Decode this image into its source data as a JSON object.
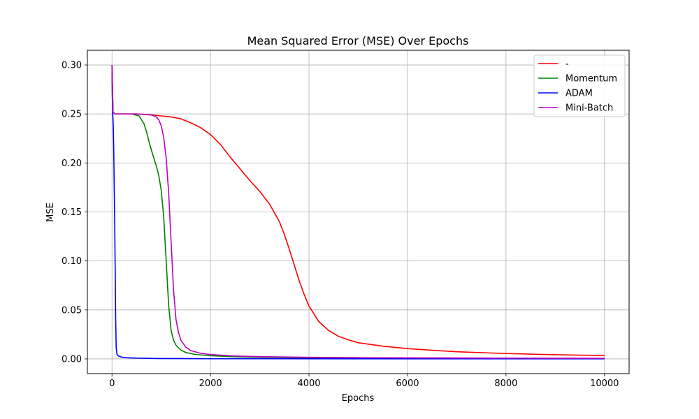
{
  "chart_data": {
    "type": "line",
    "title": "Mean Squared Error (MSE) Over Epochs",
    "xlabel": "Epochs",
    "ylabel": "MSE",
    "xlim": [
      -500,
      10500
    ],
    "ylim": [
      -0.015,
      0.315
    ],
    "x_ticks": [
      0,
      2000,
      4000,
      6000,
      8000,
      10000
    ],
    "x_tick_labels": [
      "0",
      "2000",
      "4000",
      "6000",
      "8000",
      "10000"
    ],
    "y_ticks": [
      0.0,
      0.05,
      0.1,
      0.15,
      0.2,
      0.25,
      0.3
    ],
    "y_tick_labels": [
      "0.00",
      "0.05",
      "0.10",
      "0.15",
      "0.20",
      "0.25",
      "0.30"
    ],
    "grid": true,
    "legend_position": "top-right",
    "series": [
      {
        "name": "-",
        "color": "#ff0000",
        "x": [
          0,
          20,
          60,
          200,
          500,
          800,
          1000,
          1200,
          1400,
          1600,
          1800,
          2000,
          2200,
          2400,
          2600,
          2800,
          3000,
          3200,
          3400,
          3500,
          3600,
          3700,
          3800,
          3900,
          4000,
          4200,
          4400,
          4600,
          4800,
          5000,
          5500,
          6000,
          6500,
          7000,
          8000,
          9000,
          10000
        ],
        "y": [
          0.3,
          0.252,
          0.25,
          0.25,
          0.25,
          0.249,
          0.248,
          0.247,
          0.245,
          0.241,
          0.236,
          0.229,
          0.219,
          0.206,
          0.194,
          0.182,
          0.171,
          0.158,
          0.14,
          0.127,
          0.112,
          0.096,
          0.08,
          0.066,
          0.054,
          0.038,
          0.029,
          0.023,
          0.0195,
          0.0165,
          0.013,
          0.0105,
          0.0088,
          0.0073,
          0.0055,
          0.0043,
          0.0034
        ]
      },
      {
        "name": "Momentum",
        "color": "#008000",
        "x": [
          0,
          20,
          60,
          200,
          400,
          550,
          650,
          700,
          750,
          800,
          850,
          900,
          950,
          1000,
          1050,
          1100,
          1150,
          1200,
          1250,
          1300,
          1400,
          1500,
          1700,
          2000,
          2500,
          3000,
          4000,
          5000,
          6000,
          8000,
          10000
        ],
        "y": [
          0.3,
          0.252,
          0.25,
          0.25,
          0.25,
          0.248,
          0.24,
          0.232,
          0.222,
          0.213,
          0.205,
          0.197,
          0.187,
          0.172,
          0.145,
          0.1,
          0.055,
          0.029,
          0.019,
          0.014,
          0.009,
          0.0065,
          0.0045,
          0.0032,
          0.0022,
          0.0017,
          0.0012,
          0.001,
          0.0008,
          0.0006,
          0.0005
        ]
      },
      {
        "name": "ADAM",
        "color": "#0000ff",
        "x": [
          0,
          5,
          15,
          25,
          35,
          45,
          55,
          65,
          75,
          85,
          100,
          120,
          150,
          200,
          300,
          500,
          1000,
          2000,
          5000,
          10000
        ],
        "y": [
          0.3,
          0.27,
          0.25,
          0.24,
          0.215,
          0.175,
          0.14,
          0.09,
          0.04,
          0.012,
          0.005,
          0.0035,
          0.0025,
          0.0018,
          0.0012,
          0.0008,
          0.0004,
          0.0002,
          0.0001,
          0.0001
        ]
      },
      {
        "name": "Mini-Batch",
        "color": "#bf00bf",
        "x": [
          0,
          20,
          60,
          200,
          500,
          800,
          900,
          950,
          1000,
          1050,
          1100,
          1150,
          1200,
          1250,
          1300,
          1350,
          1400,
          1500,
          1600,
          1800,
          2000,
          2500,
          3000,
          4000,
          5000,
          6000,
          8000,
          10000
        ],
        "y": [
          0.3,
          0.252,
          0.25,
          0.25,
          0.25,
          0.249,
          0.247,
          0.244,
          0.238,
          0.226,
          0.205,
          0.17,
          0.12,
          0.07,
          0.04,
          0.027,
          0.019,
          0.012,
          0.0085,
          0.0057,
          0.0045,
          0.003,
          0.0023,
          0.0016,
          0.0013,
          0.0011,
          0.0008,
          0.0006
        ]
      }
    ]
  }
}
